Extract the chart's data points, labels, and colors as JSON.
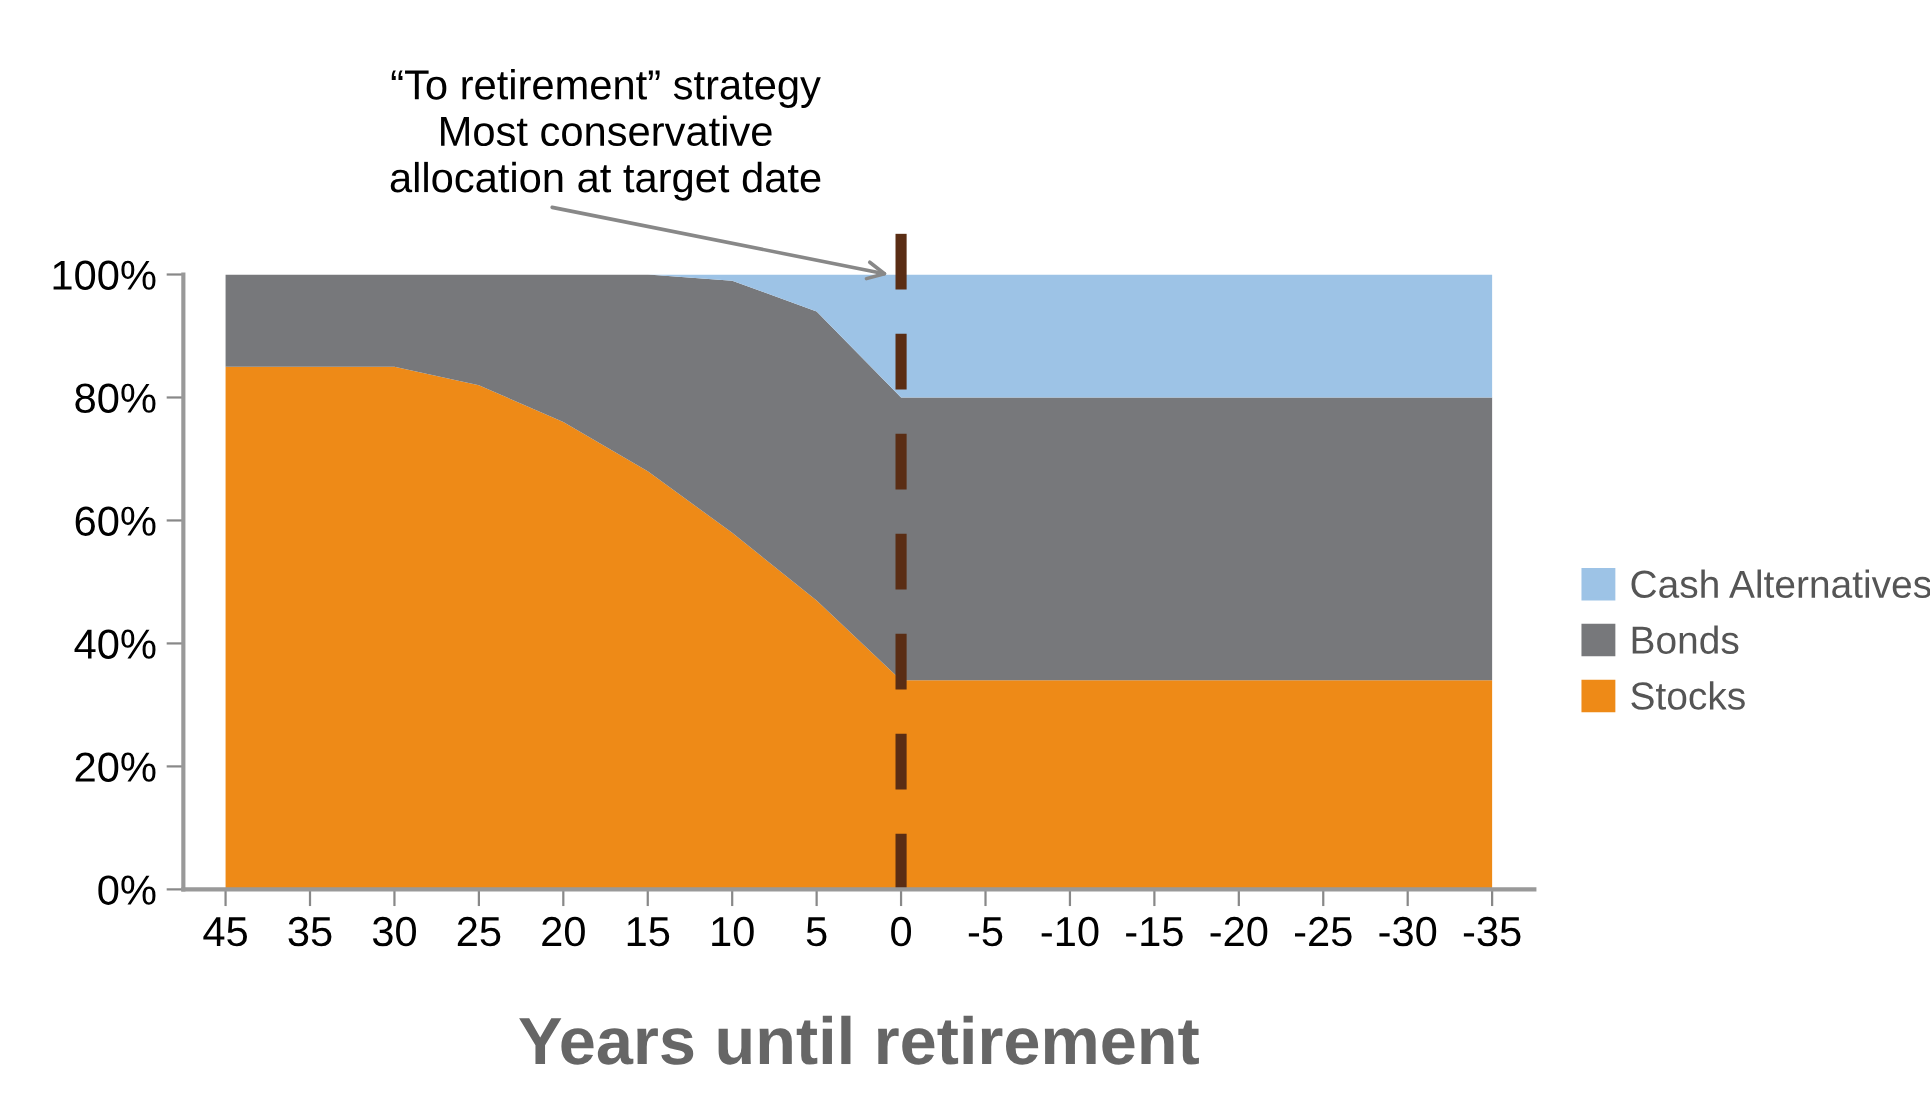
{
  "chart_data": {
    "type": "area",
    "stacked": true,
    "xlabel": "Years until retirement",
    "categories": [
      "45",
      "35",
      "30",
      "25",
      "20",
      "15",
      "10",
      "5",
      "0",
      "-5",
      "-10",
      "-15",
      "-20",
      "-25",
      "-30",
      "-35"
    ],
    "series": [
      {
        "name": "Stocks",
        "color": "#ee8a17",
        "values": [
          85,
          85,
          85,
          82,
          76,
          68,
          58,
          47,
          34,
          34,
          34,
          34,
          34,
          34,
          34,
          34
        ]
      },
      {
        "name": "Bonds",
        "color": "#77787b",
        "values": [
          15,
          15,
          15,
          18,
          24,
          32,
          41,
          47,
          46,
          46,
          46,
          46,
          46,
          46,
          46,
          46
        ]
      },
      {
        "name": "Cash Alternatives",
        "color": "#9dc3e6",
        "values": [
          0,
          0,
          0,
          0,
          0,
          0,
          1,
          6,
          20,
          20,
          20,
          20,
          20,
          20,
          20,
          20
        ]
      }
    ],
    "ylim": [
      0,
      100
    ],
    "yticks": [
      {
        "value": 0,
        "label": "0%"
      },
      {
        "value": 20,
        "label": "20%"
      },
      {
        "value": 40,
        "label": "40%"
      },
      {
        "value": 60,
        "label": "60%"
      },
      {
        "value": 80,
        "label": "80%"
      },
      {
        "value": 100,
        "label": "100%"
      }
    ],
    "ref_lines": [
      {
        "axis": "x",
        "value": "0",
        "color": "#5a2d14",
        "line_style": "dashed"
      }
    ],
    "annotations": [
      {
        "text": "“To retirement” strategy\nMost conservative\nallocation at target date",
        "x": "0",
        "y": 100
      }
    ],
    "legend": "right"
  }
}
